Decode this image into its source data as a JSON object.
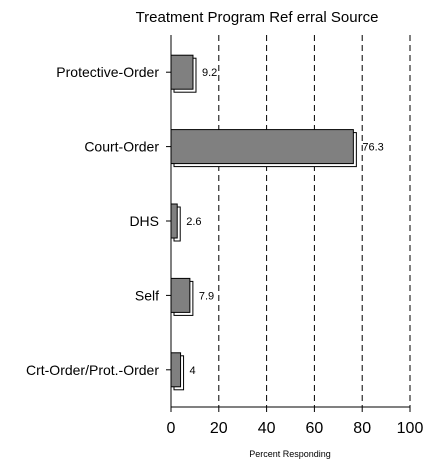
{
  "chart_data": {
    "type": "bar",
    "orientation": "horizontal",
    "title": "Treatment Program Ref erral Source",
    "xlabel": "Percent Responding",
    "ylabel": "",
    "categories": [
      "Protective-Order",
      "Court-Order",
      "DHS",
      "Self",
      "Crt-Order/Prot.-Order"
    ],
    "values": [
      9.2,
      76.3,
      2.6,
      7.9,
      4
    ],
    "value_labels": [
      "9.2",
      "76.3",
      "2.6",
      "7.9",
      "4"
    ],
    "xlim": [
      0,
      100
    ],
    "xticks": [
      0,
      20,
      40,
      60,
      80,
      100
    ],
    "xtick_labels": [
      "0",
      "20",
      "40",
      "60",
      "80",
      "100"
    ],
    "grid": "vertical dashed",
    "colors": {
      "bar_fill": "#808080",
      "bar_shadow": "#ffffff",
      "axis": "#000000",
      "grid": "#000000"
    }
  }
}
